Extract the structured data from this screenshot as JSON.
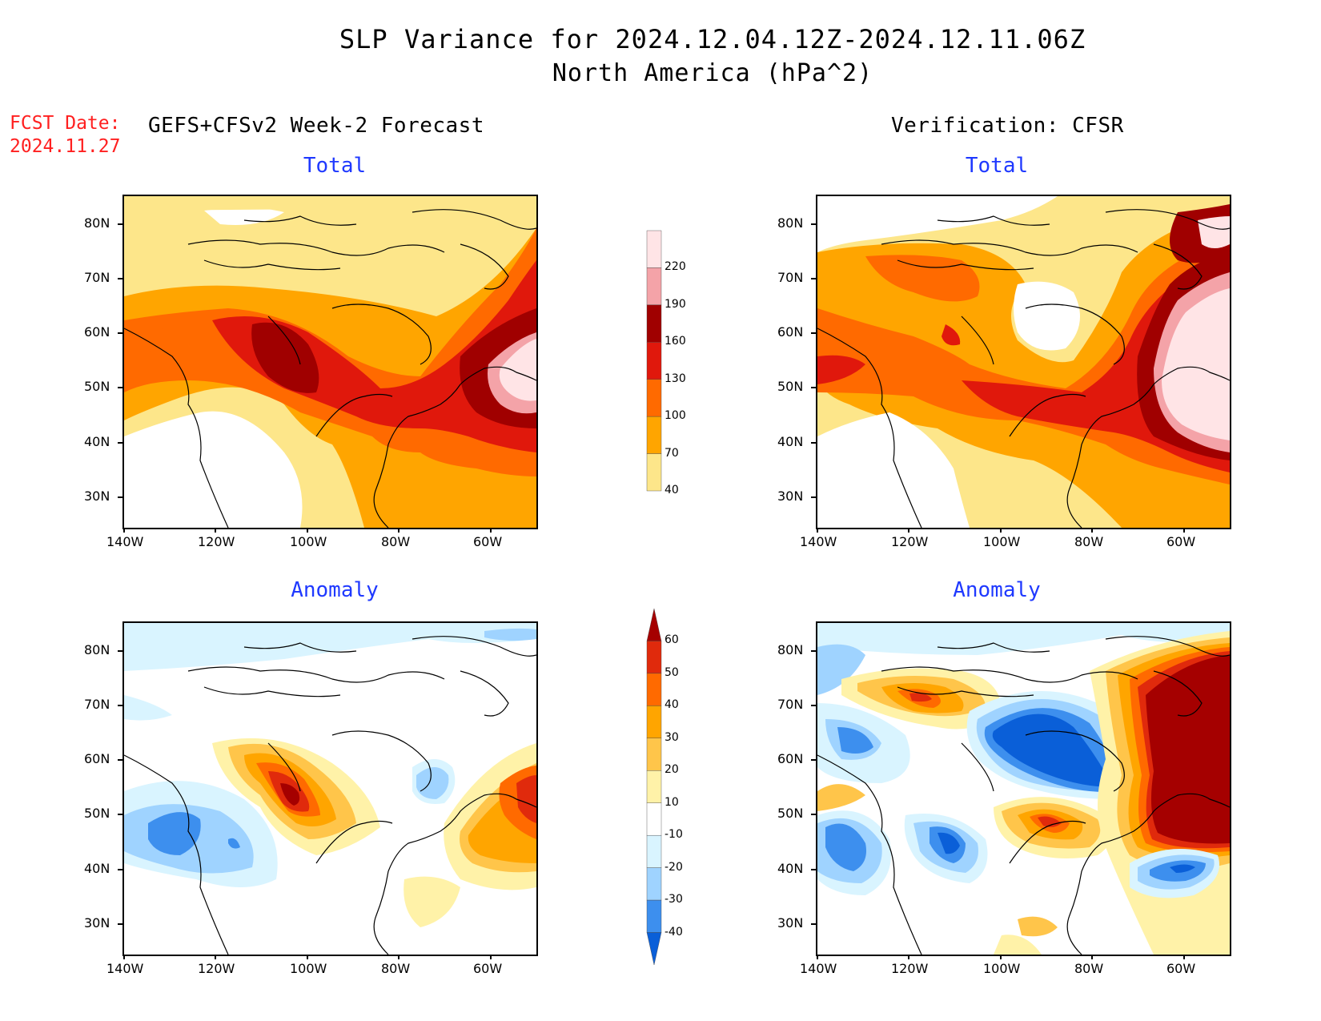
{
  "title": {
    "line1": "SLP Variance for 2024.12.04.12Z-2024.12.11.06Z",
    "line2": "North America (hPa^2)"
  },
  "fcst_date": {
    "label": "FCST Date:",
    "value": "2024.11.27"
  },
  "headers": {
    "left": "GEFS+CFSv2 Week-2 Forecast",
    "right": "Verification: CFSR"
  },
  "panels": {
    "forecast_total": {
      "subtitle": "Total"
    },
    "verification_total": {
      "subtitle": "Total"
    },
    "forecast_anomaly": {
      "subtitle": "Anomaly"
    },
    "verification_anomaly": {
      "subtitle": "Anomaly"
    }
  },
  "axes": {
    "lat_labels": [
      "80N",
      "70N",
      "60N",
      "50N",
      "40N",
      "30N"
    ],
    "lon_labels": [
      "140W",
      "120W",
      "100W",
      "80W",
      "60W"
    ]
  },
  "colorbars": {
    "total": {
      "levels": [
        "40",
        "70",
        "100",
        "130",
        "160",
        "190",
        "220"
      ],
      "colors": [
        "#fde68a",
        "#ffa500",
        "#ff6a00",
        "#e0180c",
        "#a00000",
        "#f4a3a8",
        "#ffe4e6"
      ]
    },
    "anomaly": {
      "levels": [
        "60",
        "50",
        "40",
        "30",
        "20",
        "10",
        "-10",
        "-20",
        "-30",
        "-40"
      ],
      "colors": [
        "#a50000",
        "#e02a0c",
        "#ff6a00",
        "#ffa500",
        "#ffc54a",
        "#fff2a8",
        "#ffffff",
        "#d9f4ff",
        "#9fd3ff",
        "#3d8fee",
        "#0a5fd8"
      ]
    }
  }
}
